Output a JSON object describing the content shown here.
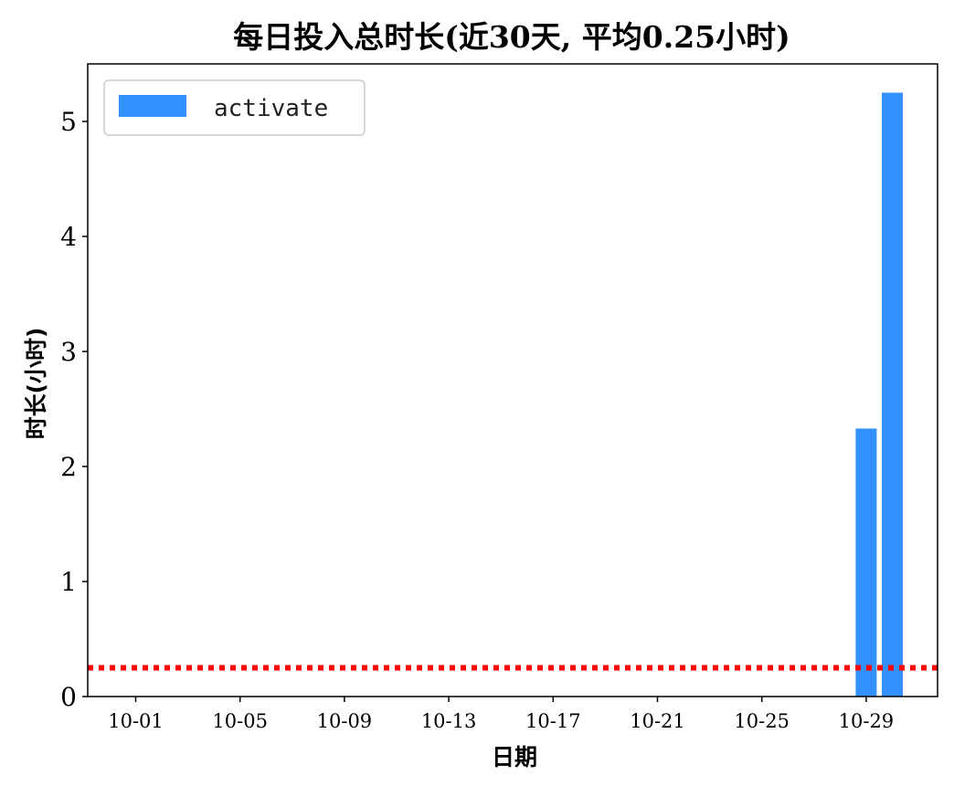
{
  "chart_data": {
    "type": "bar",
    "title": "每日投入总时长(近30天, 平均0.25小时)",
    "xlabel": "日期",
    "ylabel": "时长(小时)",
    "dates": [
      "10-01",
      "10-02",
      "10-03",
      "10-04",
      "10-05",
      "10-06",
      "10-07",
      "10-08",
      "10-09",
      "10-10",
      "10-11",
      "10-12",
      "10-13",
      "10-14",
      "10-15",
      "10-16",
      "10-17",
      "10-18",
      "10-19",
      "10-20",
      "10-21",
      "10-22",
      "10-23",
      "10-24",
      "10-25",
      "10-26",
      "10-27",
      "10-28",
      "10-29",
      "10-30"
    ],
    "series": [
      {
        "name": "activate",
        "color": "#3392ff",
        "values": [
          0,
          0,
          0,
          0,
          0,
          0,
          0,
          0,
          0,
          0,
          0,
          0,
          0,
          0,
          0,
          0,
          0,
          0,
          0,
          0,
          0,
          0,
          0,
          0,
          0,
          0,
          0,
          0,
          2.33,
          5.25
        ]
      }
    ],
    "average": 0.25,
    "average_color": "#ff0000",
    "ylim": [
      0,
      5.5
    ],
    "yticks": [
      "0",
      "1",
      "2",
      "3",
      "4",
      "5"
    ],
    "xticks": [
      "10-01",
      "10-05",
      "10-09",
      "10-13",
      "10-17",
      "10-21",
      "10-25",
      "10-29"
    ],
    "legend_position": "upper-left",
    "legend_label": "activate"
  }
}
